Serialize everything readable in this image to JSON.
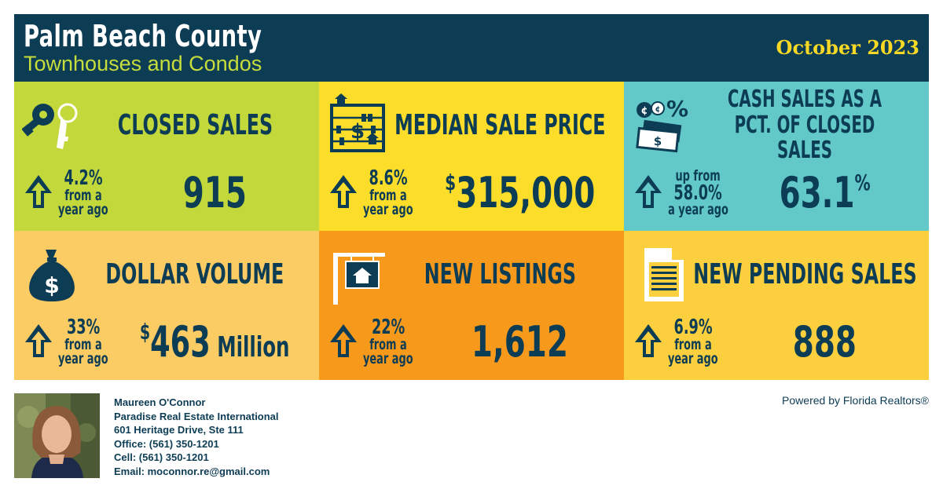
{
  "header": {
    "title": "Palm Beach County",
    "subtitle": "Townhouses and Condos",
    "date": "October 2023"
  },
  "colors": {
    "navy": "#0d3c55",
    "lime": "#c3d83b",
    "yellow": "#fbdd2a",
    "teal": "#63c9c8",
    "light_orange": "#fbcb64",
    "orange": "#f79a1c",
    "gold": "#fbcf3d"
  },
  "tiles": [
    {
      "label": "CLOSED SALES",
      "icon": "keys-icon",
      "change_lines": [
        "4.2%",
        "from a",
        "year ago"
      ],
      "value_currency": "",
      "value_main": "915",
      "value_unit": ""
    },
    {
      "label": "MEDIAN SALE PRICE",
      "icon": "abacus-icon",
      "change_lines": [
        "8.6%",
        "from a",
        "year ago"
      ],
      "value_currency": "$",
      "value_main": "315,000",
      "value_unit": ""
    },
    {
      "label": "CASH SALES AS A PCT. OF CLOSED SALES",
      "icon": "cash-percent-icon",
      "change_lines": [
        "up from",
        "58.0%",
        "a year ago"
      ],
      "value_currency": "",
      "value_main": "63.1",
      "value_unit": "%"
    },
    {
      "label": "DOLLAR VOLUME",
      "icon": "money-bag-icon",
      "change_lines": [
        "33%",
        "from a",
        "year ago"
      ],
      "value_currency": "$",
      "value_main": "463",
      "value_unit": " Million"
    },
    {
      "label": "NEW LISTINGS",
      "icon": "house-sign-icon",
      "change_lines": [
        "22%",
        "from a",
        "year ago"
      ],
      "value_currency": "",
      "value_main": "1,612",
      "value_unit": ""
    },
    {
      "label": "NEW PENDING SALES",
      "icon": "document-icon",
      "change_lines": [
        "6.9%",
        "from a",
        "year ago"
      ],
      "value_currency": "",
      "value_main": "888",
      "value_unit": ""
    }
  ],
  "agent": {
    "name": "Maureen O'Connor",
    "company": "Paradise Real Estate International",
    "address": "601 Heritage Drive, Ste 111",
    "office": "Office: (561) 350-1201",
    "cell": "Cell: (561) 350-1201",
    "email": "Email: moconnor.re@gmail.com"
  },
  "powered_by": "Powered by Florida Realtors®"
}
